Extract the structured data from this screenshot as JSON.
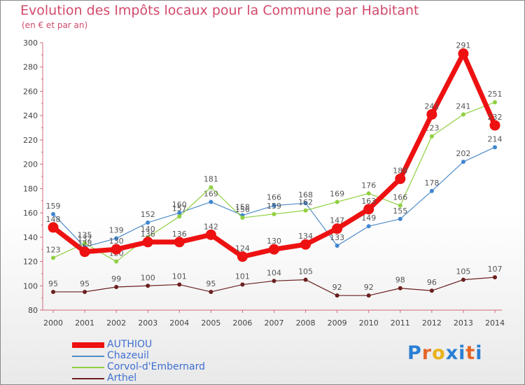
{
  "title": "Evolution des Impôts locaux pour la Commune par Habitant",
  "subtitle": "(en € et par an)",
  "brand": {
    "letters": [
      "P",
      "r",
      "o",
      "x",
      "i",
      "t",
      "i"
    ],
    "colors": [
      "#2a7fd4",
      "#e4672a",
      "#e8b21a",
      "#2a7fd4",
      "#2a7fd4",
      "#e4672a",
      "#2a7fd4"
    ]
  },
  "chart_data": {
    "type": "line",
    "title": "Evolution des Impôts locaux pour la Commune par Habitant",
    "ylabel": "(en € et par an)",
    "xlabel": "",
    "ylim": [
      80,
      300
    ],
    "yticks": [
      80,
      100,
      120,
      140,
      160,
      180,
      200,
      220,
      240,
      260,
      280,
      300
    ],
    "categories": [
      "2000",
      "2001",
      "2002",
      "2003",
      "2004",
      "2005",
      "2006",
      "2007",
      "2008",
      "2009",
      "2010",
      "2011",
      "2012",
      "2013",
      "2014"
    ],
    "grid": false,
    "legend_position": "bottom-left",
    "series": [
      {
        "name": "Chazeuil",
        "color": "#4f8cc9",
        "values": [
          159,
          132,
          139,
          152,
          160,
          169,
          158,
          166,
          168,
          133,
          149,
          155,
          178,
          202,
          214
        ]
      },
      {
        "name": "Corvol-d'Embernard",
        "color": "#8fd040",
        "values": [
          123,
          135,
          120,
          140,
          157,
          181,
          156,
          159,
          162,
          169,
          176,
          166,
          223,
          241,
          251
        ]
      },
      {
        "name": "Arthel",
        "color": "#6b2020",
        "values": [
          95,
          95,
          99,
          100,
          101,
          95,
          101,
          104,
          105,
          92,
          92,
          98,
          96,
          105,
          107
        ]
      },
      {
        "name": "AUTHIOU",
        "color": "#ee1111",
        "values": [
          148,
          128,
          130,
          136,
          136,
          142,
          124,
          130,
          134,
          147,
          163,
          188,
          241,
          291,
          232
        ]
      }
    ],
    "legend_order": [
      "AUTHIOU",
      "Chazeuil",
      "Corvol-d'Embernard",
      "Arthel"
    ]
  }
}
